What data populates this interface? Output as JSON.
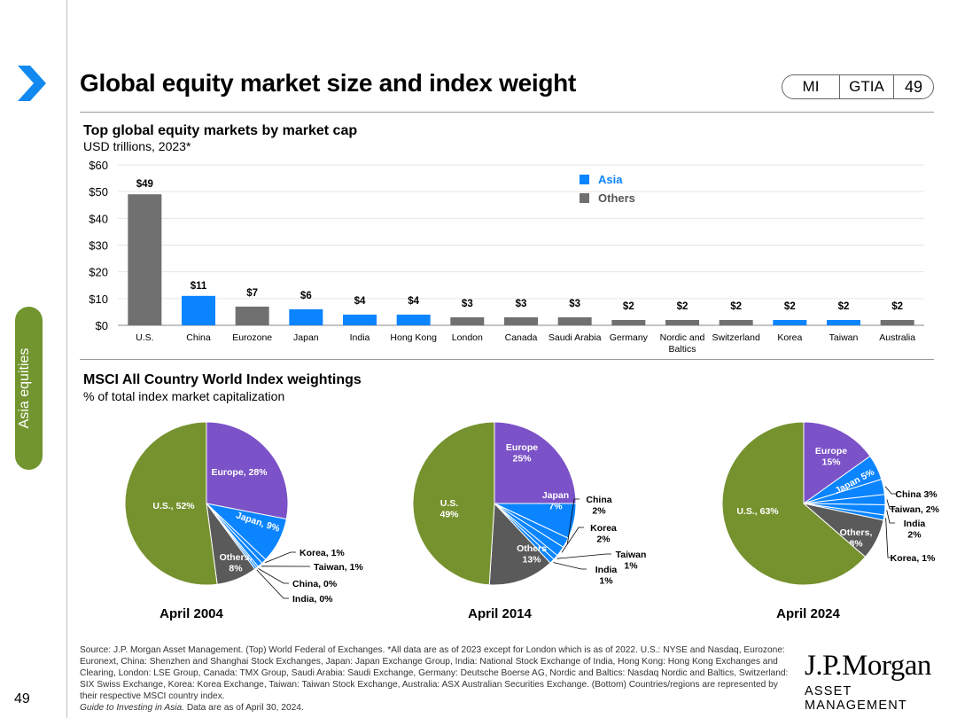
{
  "header": {
    "title": "Global equity market size and index weight",
    "badge": {
      "b1": "MI",
      "b2": "GTIA",
      "b3": "49"
    }
  },
  "sidebar": {
    "tab_label": "Asia equities",
    "page_number": "49"
  },
  "colors": {
    "asia": "#0a84ff",
    "others": "#707070",
    "us": "#76922f",
    "europe": "#7b52c7",
    "japan": "#0a84ff",
    "accent_tab": "#72952f",
    "chevron": "#1289f0"
  },
  "chart_data": [
    {
      "type": "bar",
      "title": "Top global equity markets by market cap",
      "subtitle": "USD trillions, 2023*",
      "categories": [
        "U.S.",
        "China",
        "Eurozone",
        "Japan",
        "India",
        "Hong Kong",
        "London",
        "Canada",
        "Saudi Arabia",
        "Germany",
        "Nordic and Baltics",
        "Switzerland",
        "Korea",
        "Taiwan",
        "Australia"
      ],
      "values": [
        49,
        11,
        7,
        6,
        4,
        4,
        3,
        3,
        3,
        2,
        2,
        2,
        2,
        2,
        2
      ],
      "value_labels": [
        "$49",
        "$11",
        "$7",
        "$6",
        "$4",
        "$4",
        "$3",
        "$3",
        "$3",
        "$2",
        "$2",
        "$2",
        "$2",
        "$2",
        "$2"
      ],
      "groups": [
        "Others",
        "Asia",
        "Others",
        "Asia",
        "Asia",
        "Asia",
        "Others",
        "Others",
        "Others",
        "Others",
        "Others",
        "Others",
        "Asia",
        "Asia",
        "Others"
      ],
      "ylim": [
        0,
        60
      ],
      "yticks": [
        0,
        10,
        20,
        30,
        40,
        50,
        60
      ],
      "ytick_labels": [
        "$0",
        "$10",
        "$20",
        "$30",
        "$40",
        "$50",
        "$60"
      ],
      "legend": [
        "Asia",
        "Others"
      ],
      "legend_placement": "top-right"
    },
    {
      "type": "pie",
      "title": "MSCI All Country World Index weightings",
      "subtitle": "% of total index market capitalization",
      "charts": [
        {
          "caption": "April 2004",
          "slices": [
            {
              "name": "Europe",
              "value": 28,
              "label": "Europe, 28%",
              "color": "#7b52c7"
            },
            {
              "name": "Japan",
              "value": 9,
              "label": "Japan, 9%",
              "color": "#0a84ff"
            },
            {
              "name": "Korea",
              "value": 1,
              "label": "Korea, 1%",
              "color": "#0a84ff"
            },
            {
              "name": "Taiwan",
              "value": 1,
              "label": "Taiwan, 1%",
              "color": "#0a84ff"
            },
            {
              "name": "China",
              "value": 0.4,
              "label": "China, 0%",
              "color": "#0a84ff"
            },
            {
              "name": "India",
              "value": 0.4,
              "label": "India, 0%",
              "color": "#0a84ff"
            },
            {
              "name": "Others",
              "value": 8,
              "label": "Others, 8%",
              "color": "#5a5a5a"
            },
            {
              "name": "U.S.",
              "value": 52,
              "label": "U.S., 52%",
              "color": "#76922f"
            }
          ]
        },
        {
          "caption": "April 2014",
          "slices": [
            {
              "name": "Europe",
              "value": 25,
              "label": "Europe 25%",
              "color": "#7b52c7"
            },
            {
              "name": "Japan",
              "value": 7,
              "label": "Japan 7%",
              "color": "#0a84ff"
            },
            {
              "name": "China",
              "value": 2,
              "label": "China 2%",
              "color": "#0a84ff"
            },
            {
              "name": "Korea",
              "value": 2,
              "label": "Korea 2%",
              "color": "#0a84ff"
            },
            {
              "name": "Taiwan",
              "value": 1,
              "label": "Taiwan 1%",
              "color": "#0a84ff"
            },
            {
              "name": "India",
              "value": 1,
              "label": "India 1%",
              "color": "#0a84ff"
            },
            {
              "name": "Others",
              "value": 13,
              "label": "Others 13%",
              "color": "#5a5a5a"
            },
            {
              "name": "U.S.",
              "value": 49,
              "label": "U.S. 49%",
              "color": "#76922f"
            }
          ]
        },
        {
          "caption": "April 2024",
          "slices": [
            {
              "name": "Europe",
              "value": 15,
              "label": "Europe 15%",
              "color": "#7b52c7"
            },
            {
              "name": "Japan",
              "value": 5,
              "label": "Japan 5%",
              "color": "#0a84ff"
            },
            {
              "name": "China",
              "value": 3,
              "label": "China 3%",
              "color": "#0a84ff"
            },
            {
              "name": "Taiwan",
              "value": 2,
              "label": "Taiwan, 2%",
              "color": "#0a84ff"
            },
            {
              "name": "India",
              "value": 2,
              "label": "India 2%",
              "color": "#0a84ff"
            },
            {
              "name": "Korea",
              "value": 1,
              "label": "Korea, 1%",
              "color": "#0a84ff"
            },
            {
              "name": "Others",
              "value": 8,
              "label": "Others, 8%",
              "color": "#5a5a5a"
            },
            {
              "name": "U.S.",
              "value": 63,
              "label": "U.S., 63%",
              "color": "#76922f"
            }
          ]
        }
      ]
    }
  ],
  "footnote": {
    "text": "Source: J.P. Morgan Asset Management. (Top) World Federal of Exchanges. *All data are as of 2023 except for London which is as of 2022. U.S.: NYSE and Nasdaq, Eurozone: Euronext, China: Shenzhen and Shanghai Stock Exchanges, Japan: Japan Exchange Group, India: National Stock Exchange of India, Hong Kong: Hong Kong Exchanges and Clearing, London: LSE Group, Canada: TMX Group, Saudi Arabia: Saudi Exchange, Germany: Deutsche Boerse AG, Nordic and Baltics: Nasdaq Nordic and Baltics, Switzerland: SIX Swiss Exchange, Korea: Korea Exchange, Taiwan: Taiwan Stock Exchange, Australia: ASX Australian Securities Exchange. (Bottom) Countries/regions are represented by their respective MSCI country index.",
    "guide": "Guide to Investing in Asia.",
    "guide_rest": " Data are as of April 30, 2024."
  },
  "logo": {
    "line1": "J.P.Morgan",
    "line2": "ASSET MANAGEMENT"
  }
}
